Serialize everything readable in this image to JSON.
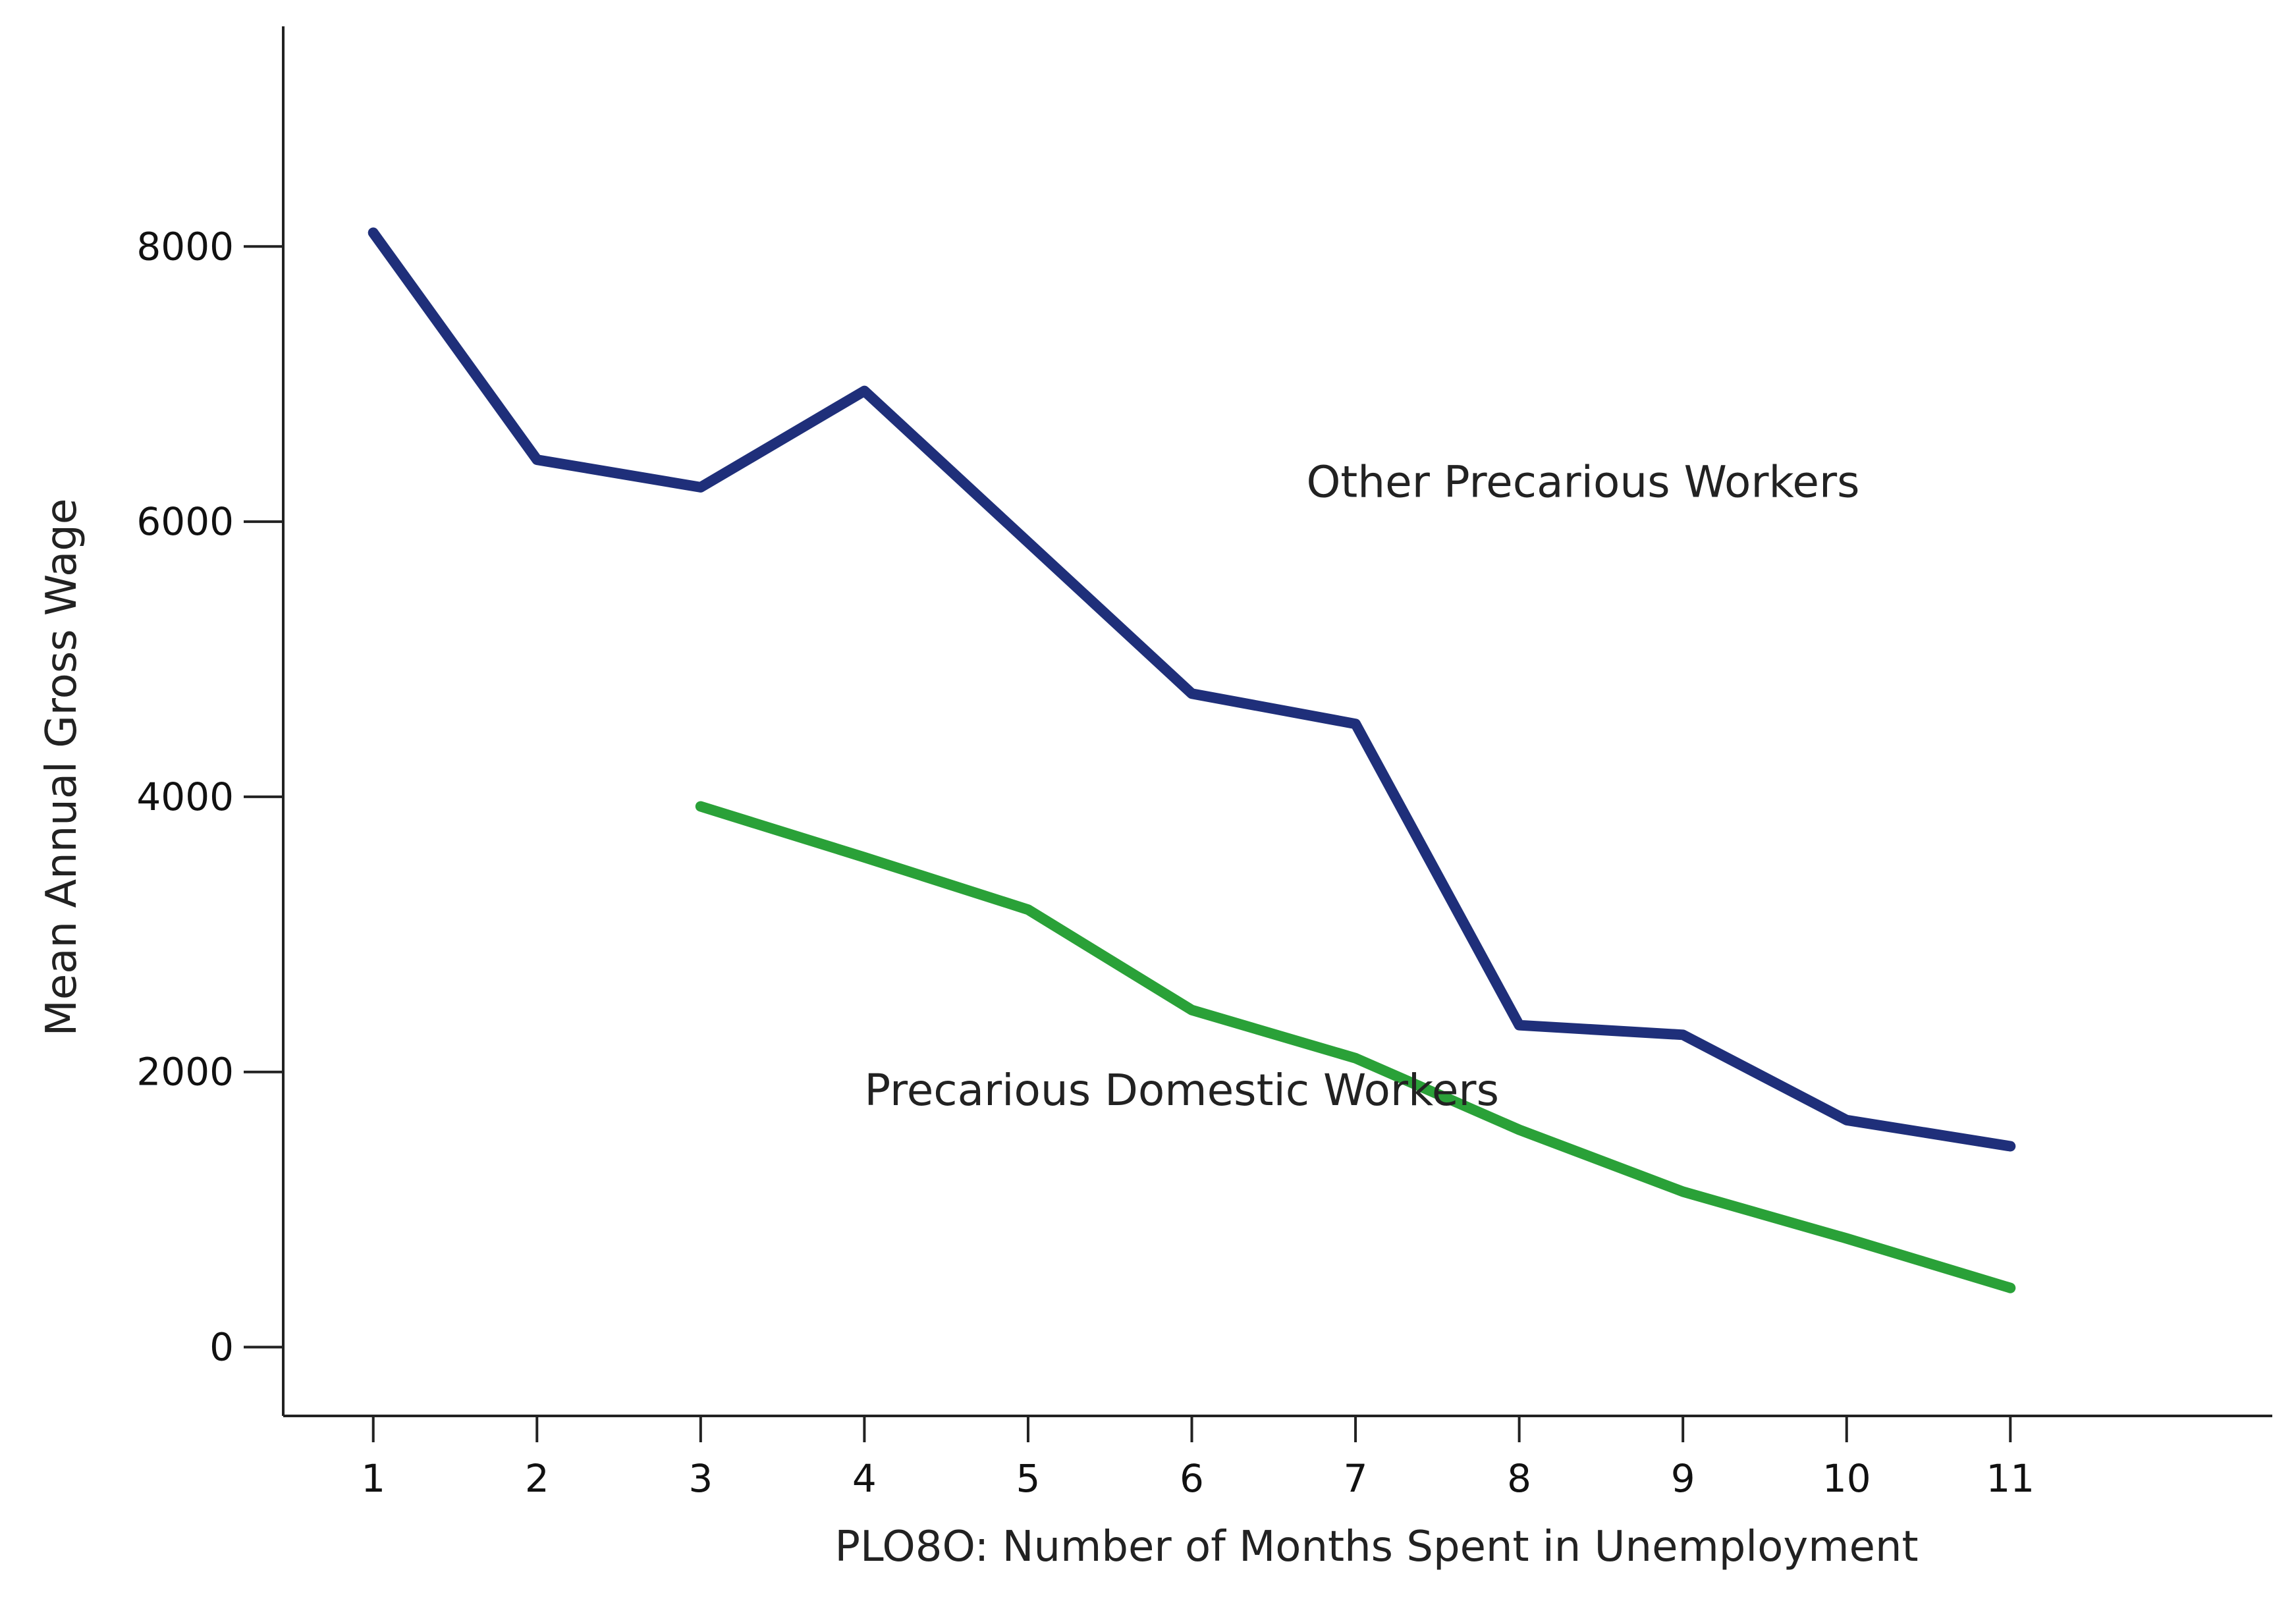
{
  "chart_data": {
    "type": "line",
    "xlabel": "PLO8O: Number of Months Spent in Unemployment",
    "ylabel": "Mean Annual Gross Wage",
    "x_ticks": [
      1,
      2,
      3,
      4,
      5,
      6,
      7,
      8,
      9,
      10,
      11
    ],
    "y_ticks": [
      0,
      2000,
      4000,
      6000,
      8000
    ],
    "xlim": [
      0.45,
      12.6
    ],
    "ylim": [
      -500,
      9600
    ],
    "grid": false,
    "series": [
      {
        "name": "Other Precarious Workers",
        "color": "#1f2f7a",
        "x": [
          1,
          2,
          3,
          4,
          5,
          6,
          7,
          8,
          9,
          10,
          11
        ],
        "y": [
          8100,
          6450,
          6250,
          6950,
          5850,
          4750,
          4530,
          2340,
          2270,
          1650,
          1460
        ]
      },
      {
        "name": "Precarious Domestic Workers",
        "color": "#2aa138",
        "x": [
          3,
          4,
          5,
          6,
          7,
          8,
          9,
          10,
          11
        ],
        "y": [
          3930,
          3560,
          3180,
          2450,
          2100,
          1580,
          1130,
          790,
          430
        ]
      }
    ],
    "annotations": [
      {
        "text": "Other Precarious Workers",
        "series": 0,
        "x": 6.7,
        "y": 6180
      },
      {
        "text": "Precarious Domestic Workers",
        "series": 1,
        "x": 4.0,
        "y": 1760
      }
    ]
  }
}
